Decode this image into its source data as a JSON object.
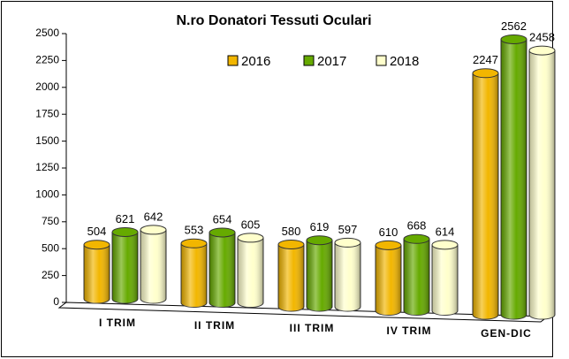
{
  "chart_data": {
    "type": "bar3d",
    "title": "N.ro Donatori Tessuti Oculari",
    "categories": [
      "I TRIM",
      "II TRIM",
      "III TRIM",
      "IV TRIM",
      "GEN-DIC"
    ],
    "series": [
      {
        "name": "2016",
        "color": "#f2b600",
        "values": [
          504,
          553,
          580,
          610,
          2247
        ]
      },
      {
        "name": "2017",
        "color": "#66aa00",
        "values": [
          621,
          654,
          619,
          668,
          2562
        ]
      },
      {
        "name": "2018",
        "color": "#ffffcc",
        "values": [
          642,
          605,
          597,
          614,
          2458
        ]
      }
    ],
    "ylim": [
      0,
      2500
    ],
    "yticks": [
      0,
      250,
      500,
      750,
      1000,
      1250,
      1500,
      1750,
      2000,
      2250,
      2500
    ],
    "legend": "top"
  }
}
